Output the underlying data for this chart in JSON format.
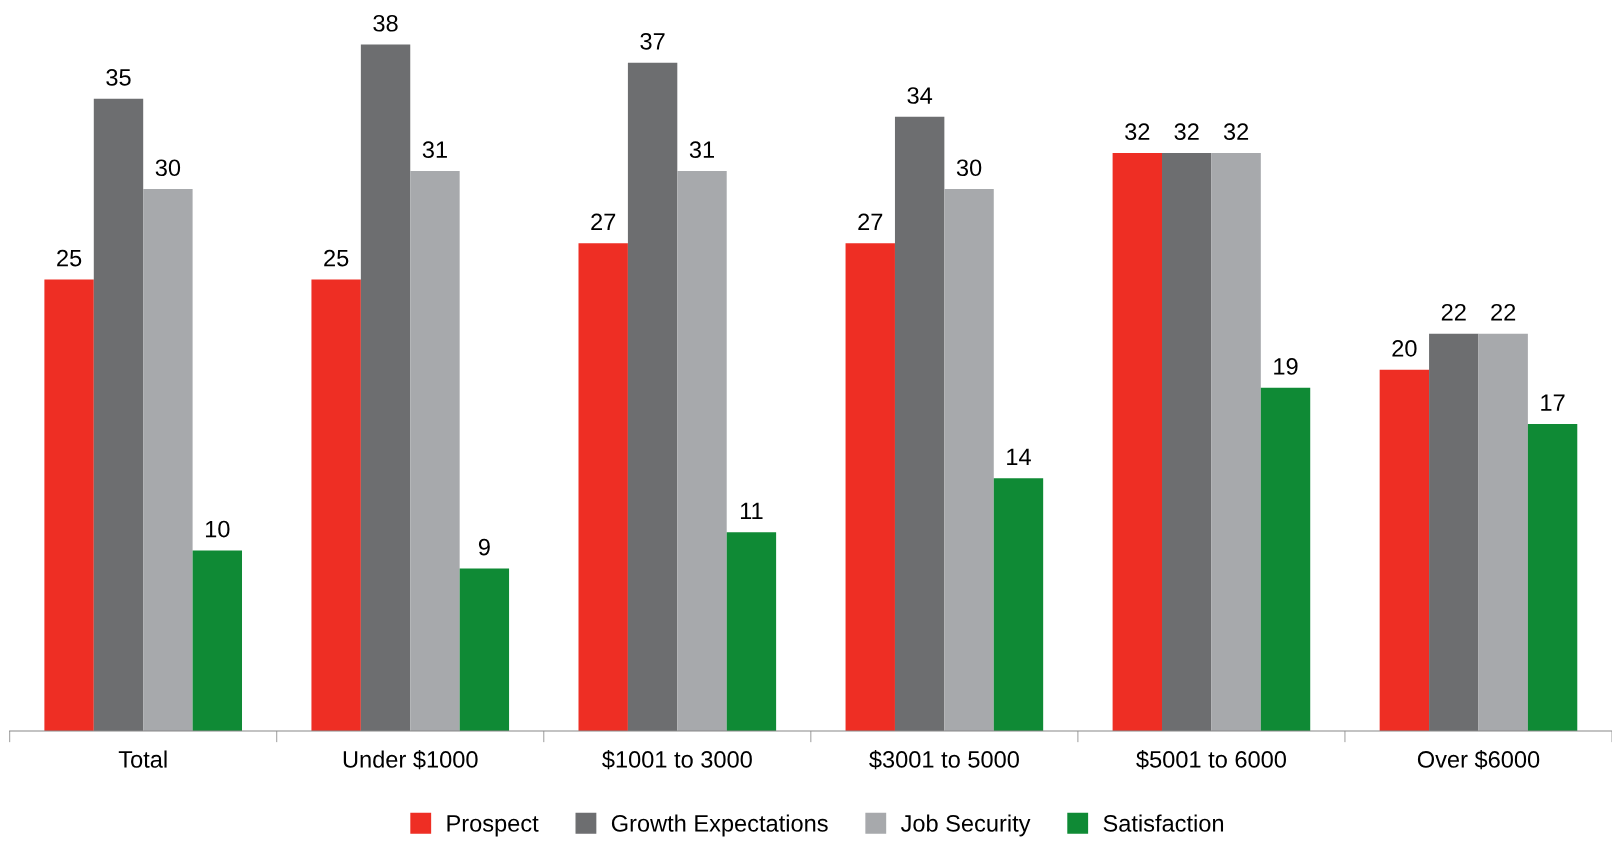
{
  "chart_data": {
    "type": "bar",
    "categories": [
      "Total",
      "Under $1000",
      "$1001 to 3000",
      "$3001 to 5000",
      "$5001 to 6000",
      "Over $6000"
    ],
    "series": [
      {
        "name": "Prospect",
        "color": "#ee2e24",
        "values": [
          25,
          25,
          27,
          27,
          32,
          20
        ]
      },
      {
        "name": "Growth Expectations",
        "color": "#6d6e70",
        "values": [
          35,
          38,
          37,
          34,
          32,
          22
        ]
      },
      {
        "name": "Job Security",
        "color": "#a7a9ac",
        "values": [
          30,
          31,
          31,
          30,
          32,
          22
        ]
      },
      {
        "name": "Satisfaction",
        "color": "#0f8a35",
        "values": [
          10,
          9,
          11,
          14,
          19,
          17
        ]
      }
    ],
    "data_labels": true,
    "legend": "bottom",
    "grid": false,
    "tick_labels": "x"
  }
}
